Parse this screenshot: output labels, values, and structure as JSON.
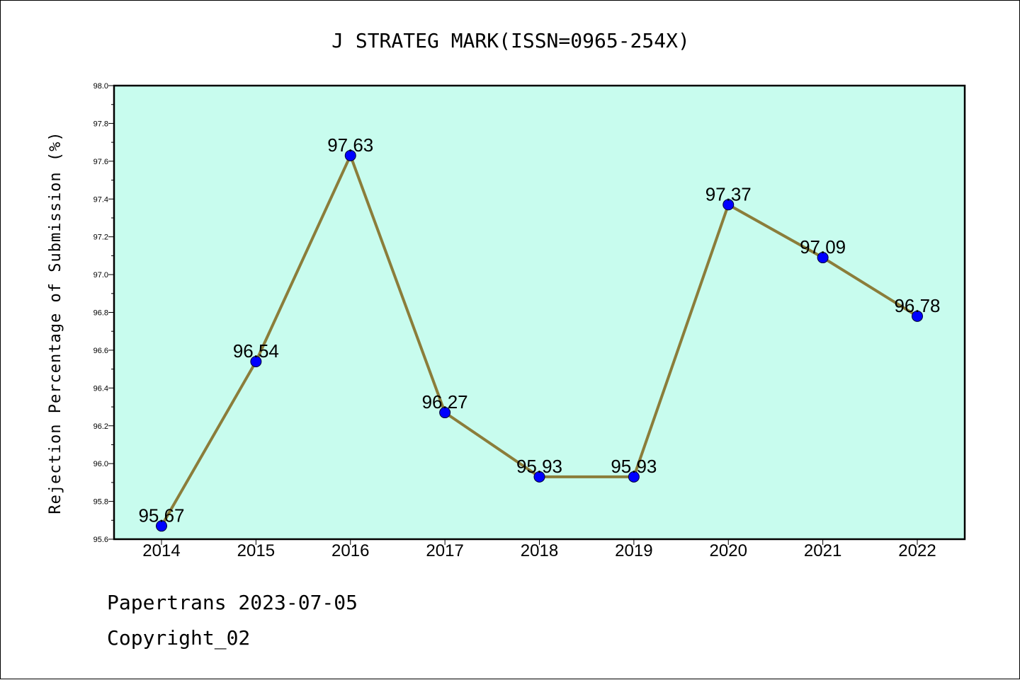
{
  "chart_data": {
    "type": "line",
    "title": "J STRATEG MARK(ISSN=0965-254X)",
    "xlabel": "",
    "ylabel": "Rejection Percentage of Submission (%)",
    "categories": [
      "2014",
      "2015",
      "2016",
      "2017",
      "2018",
      "2019",
      "2020",
      "2021",
      "2022"
    ],
    "values": [
      95.67,
      96.54,
      97.63,
      96.27,
      95.93,
      95.93,
      97.37,
      97.09,
      96.78
    ],
    "data_labels": [
      "95.67",
      "96.54",
      "97.63",
      "96.27",
      "95.93",
      "95.93",
      "97.37",
      "97.09",
      "96.78"
    ],
    "ylim": [
      95.6,
      98.0
    ],
    "yticks": [
      "95.6",
      "95.8",
      "96.0",
      "96.2",
      "96.4",
      "96.6",
      "96.8",
      "97.0",
      "97.2",
      "97.4",
      "97.6",
      "97.8",
      "98.0"
    ],
    "grid": false,
    "colors": {
      "plot_background": "#c8fcee",
      "line": "#8b7d3a",
      "marker": "#0000ff"
    }
  },
  "footer": {
    "line1": "Papertrans 2023-07-05",
    "line2": "Copyright_02"
  }
}
